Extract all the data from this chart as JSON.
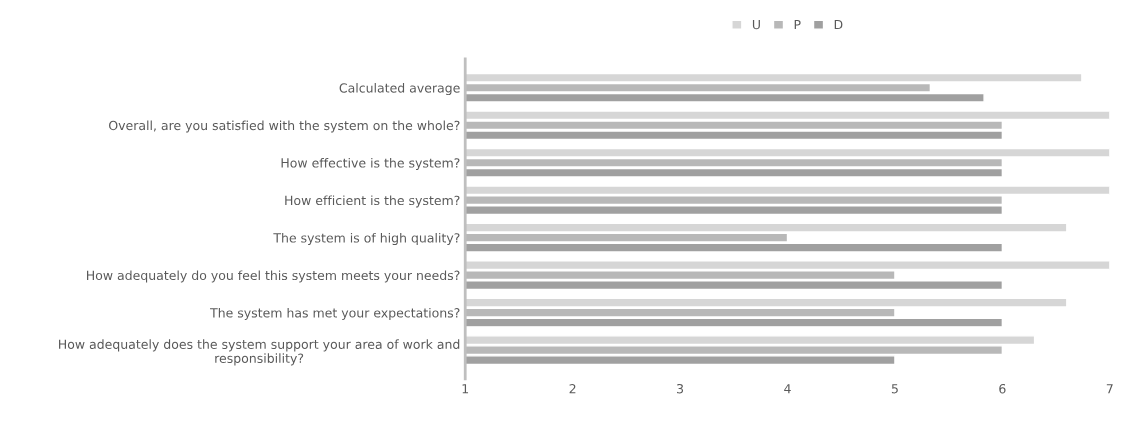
{
  "chart_data": {
    "type": "bar",
    "orientation": "horizontal",
    "categories": [
      "Calculated average",
      "Overall, are you satisfied with the system on the whole?",
      "How effective is the system?",
      "How efficient is the system?",
      "The system is of high quality?",
      "How adequately do you feel this system meets your needs?",
      "The system has met your expectations?",
      "How adequately does the system support your area of work and\nresponsibility?"
    ],
    "series": [
      {
        "name": "U",
        "color": "#d6d6d6",
        "values": [
          6.74,
          7,
          7,
          7,
          6.6,
          7,
          6.6,
          6.3
        ]
      },
      {
        "name": "P",
        "color": "#b8b8b8",
        "values": [
          5.33,
          6,
          6,
          6,
          4,
          5,
          5,
          6
        ]
      },
      {
        "name": "D",
        "color": "#a0a0a0",
        "values": [
          5.83,
          6,
          6,
          6,
          6,
          6,
          6,
          5
        ]
      }
    ],
    "xlim": [
      1,
      7
    ],
    "xticks": [
      1,
      2,
      3,
      4,
      5,
      6,
      7
    ],
    "grid": false,
    "legend": "top"
  }
}
